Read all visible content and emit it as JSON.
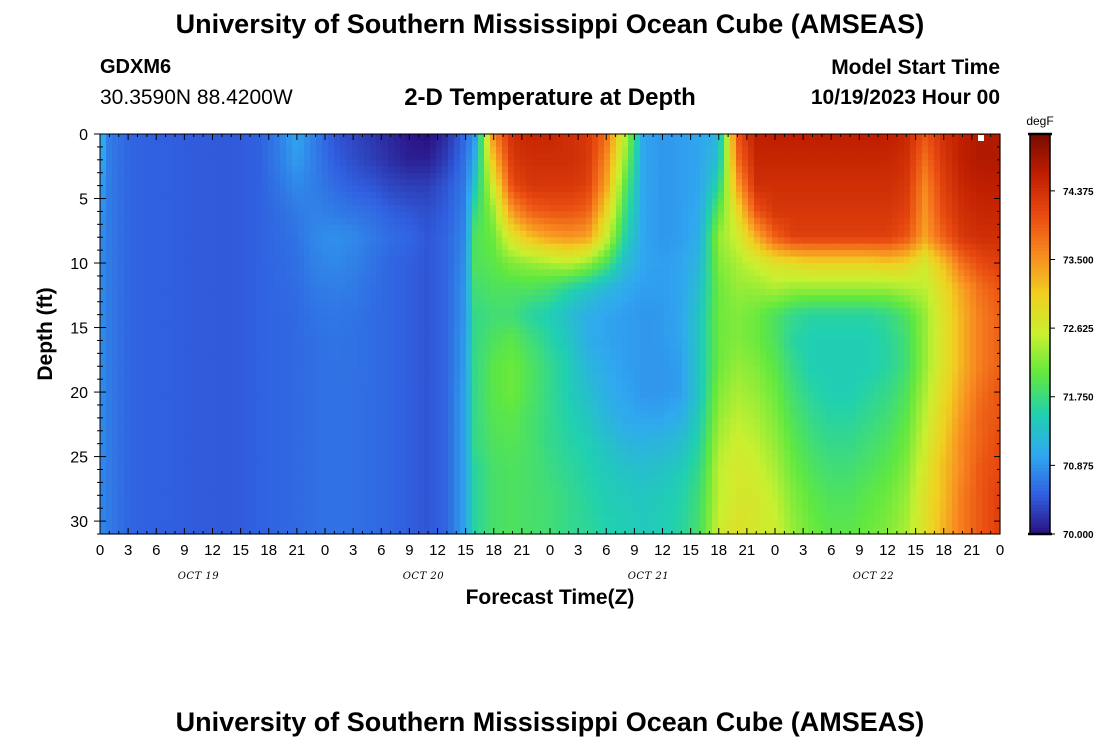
{
  "header": {
    "title": "University of Southern Mississippi Ocean Cube (AMSEAS)",
    "station": "GDXM6",
    "coords": "30.3590N  88.4200W",
    "subtitle": "2-D Temperature at Depth",
    "start_label": "Model Start Time",
    "start_date": "10/19/2023 Hour 00"
  },
  "footer": {
    "title": "University of Southern Mississippi Ocean Cube (AMSEAS)"
  },
  "chart_data": {
    "type": "heatmap",
    "title": "2-D Temperature at Depth",
    "xlabel": "Forecast Time(Z)",
    "ylabel": "Depth (ft)",
    "x_tick_labels": [
      "0",
      "3",
      "6",
      "9",
      "12",
      "15",
      "18",
      "21",
      "0",
      "3",
      "6",
      "9",
      "12",
      "15",
      "18",
      "21",
      "0",
      "3",
      "6",
      "9",
      "12",
      "15",
      "18",
      "21",
      "0",
      "3",
      "6",
      "9",
      "12",
      "15",
      "18",
      "21",
      "0"
    ],
    "x_day_labels": [
      "OCT 19",
      "OCT 20",
      "OCT 21",
      "OCT 22"
    ],
    "x_range_hours": [
      0,
      96
    ],
    "y_ticks": [
      0,
      5,
      10,
      15,
      20,
      25,
      30
    ],
    "y_range_ft": [
      0,
      31
    ],
    "colorbar": {
      "unit": "degF",
      "ticks": [
        70.0,
        70.875,
        71.75,
        72.625,
        73.5,
        74.375
      ],
      "tick_labels": [
        "70.000",
        "70.875",
        "71.750",
        "72.625",
        "73.500",
        "74.375"
      ],
      "range": [
        70.0,
        75.1
      ],
      "colormap": [
        "#2a0f80",
        "#3060e0",
        "#30a8f0",
        "#20d0b0",
        "#60e840",
        "#c8f030",
        "#f0d020",
        "#f88a20",
        "#e84a10",
        "#c01e00",
        "#780c00"
      ]
    },
    "field": {
      "depth_ft": [
        0,
        2,
        4,
        6,
        8,
        10,
        12,
        14,
        16,
        18,
        20,
        22,
        24,
        26,
        28,
        31
      ],
      "hours": [
        0,
        1,
        3,
        5,
        8,
        11,
        14,
        17,
        19,
        21,
        23,
        25,
        27,
        29,
        31,
        33,
        35,
        37,
        39,
        40,
        42,
        44,
        46,
        48,
        50,
        52,
        54,
        56,
        58,
        60,
        62,
        64,
        66,
        68,
        70,
        72,
        74,
        76,
        78,
        80,
        82,
        84,
        86,
        88,
        90,
        92,
        94,
        96
      ],
      "values_degF": [
        [
          71.2,
          70.7,
          70.55,
          70.52,
          70.5,
          70.48,
          70.47,
          70.52,
          70.72,
          71.0,
          70.7,
          70.45,
          70.35,
          70.25,
          70.15,
          70.05,
          70.0,
          70.2,
          70.6,
          70.9,
          73.6,
          74.4,
          74.5,
          74.5,
          74.4,
          74.3,
          73.8,
          72.5,
          71.0,
          70.9,
          70.95,
          71.0,
          71.2,
          74.0,
          74.6,
          74.6,
          74.6,
          74.6,
          74.6,
          74.6,
          74.6,
          74.6,
          74.5,
          74.0,
          74.4,
          74.6,
          74.7,
          74.7
        ],
        [
          71.1,
          70.7,
          70.55,
          70.52,
          70.5,
          70.48,
          70.47,
          70.52,
          70.7,
          70.95,
          70.7,
          70.5,
          70.4,
          70.3,
          70.2,
          70.1,
          70.1,
          70.3,
          70.65,
          71.1,
          73.2,
          74.3,
          74.4,
          74.4,
          74.4,
          74.3,
          73.6,
          72.3,
          71.0,
          70.9,
          70.95,
          71.0,
          71.3,
          73.8,
          74.5,
          74.5,
          74.5,
          74.5,
          74.5,
          74.5,
          74.5,
          74.5,
          74.4,
          73.8,
          74.3,
          74.6,
          74.7,
          74.7
        ],
        [
          71.0,
          70.7,
          70.55,
          70.52,
          70.5,
          70.48,
          70.47,
          70.52,
          70.65,
          70.8,
          70.72,
          70.6,
          70.5,
          70.45,
          70.35,
          70.3,
          70.3,
          70.45,
          70.7,
          71.4,
          72.7,
          74.1,
          74.3,
          74.3,
          74.3,
          74.2,
          73.4,
          72.0,
          71.0,
          70.9,
          70.95,
          71.0,
          71.6,
          73.4,
          74.4,
          74.4,
          74.4,
          74.4,
          74.4,
          74.4,
          74.4,
          74.4,
          74.3,
          73.6,
          74.2,
          74.5,
          74.6,
          74.6
        ],
        [
          70.9,
          70.7,
          70.55,
          70.52,
          70.5,
          70.48,
          70.47,
          70.52,
          70.6,
          70.7,
          70.75,
          70.7,
          70.65,
          70.6,
          70.5,
          70.45,
          70.4,
          70.5,
          70.75,
          71.7,
          72.3,
          73.5,
          73.9,
          74.0,
          74.0,
          73.9,
          73.0,
          71.8,
          71.0,
          70.9,
          70.95,
          71.05,
          72.0,
          72.9,
          74.0,
          74.3,
          74.3,
          74.3,
          74.3,
          74.3,
          74.3,
          74.3,
          74.2,
          73.5,
          74.1,
          74.4,
          74.5,
          74.5
        ],
        [
          70.85,
          70.7,
          70.55,
          70.52,
          70.5,
          70.48,
          70.47,
          70.52,
          70.58,
          70.65,
          70.8,
          70.85,
          70.8,
          70.7,
          70.6,
          70.55,
          70.45,
          70.55,
          70.8,
          71.9,
          72.1,
          72.8,
          73.2,
          73.4,
          73.5,
          73.4,
          72.6,
          71.6,
          71.0,
          70.9,
          70.95,
          71.1,
          72.3,
          72.6,
          73.3,
          73.9,
          74.2,
          74.2,
          74.2,
          74.2,
          74.2,
          74.2,
          74.0,
          73.4,
          73.9,
          74.3,
          74.4,
          74.4
        ],
        [
          70.85,
          70.7,
          70.55,
          70.52,
          70.5,
          70.48,
          70.47,
          70.52,
          70.57,
          70.62,
          70.75,
          70.8,
          70.75,
          70.65,
          70.55,
          70.5,
          70.45,
          70.55,
          70.85,
          71.9,
          72.0,
          72.2,
          72.3,
          72.4,
          72.5,
          72.3,
          71.9,
          71.3,
          71.0,
          70.95,
          71.0,
          71.2,
          72.2,
          72.4,
          72.6,
          72.8,
          72.9,
          73.0,
          73.0,
          73.0,
          73.0,
          73.1,
          73.0,
          72.7,
          73.2,
          73.8,
          74.1,
          74.2
        ],
        [
          70.85,
          70.7,
          70.55,
          70.52,
          70.5,
          70.48,
          70.47,
          70.52,
          70.56,
          70.6,
          70.7,
          70.72,
          70.7,
          70.62,
          70.55,
          70.5,
          70.45,
          70.55,
          70.9,
          71.8,
          71.9,
          71.9,
          71.9,
          71.8,
          71.6,
          71.4,
          71.2,
          71.05,
          70.95,
          70.95,
          71.0,
          71.3,
          72.1,
          72.3,
          72.3,
          72.4,
          72.3,
          72.3,
          72.3,
          72.3,
          72.3,
          72.3,
          72.4,
          72.5,
          72.9,
          73.4,
          73.8,
          74.0
        ],
        [
          70.85,
          70.7,
          70.55,
          70.52,
          70.5,
          70.48,
          70.47,
          70.52,
          70.55,
          70.58,
          70.65,
          70.68,
          70.65,
          70.6,
          70.55,
          70.5,
          70.45,
          70.55,
          70.9,
          71.7,
          71.8,
          71.8,
          71.6,
          71.5,
          71.3,
          71.1,
          71.0,
          70.95,
          70.9,
          70.92,
          71.0,
          71.4,
          72.1,
          72.2,
          72.1,
          71.9,
          71.7,
          71.6,
          71.6,
          71.6,
          71.6,
          71.7,
          71.9,
          72.3,
          72.8,
          73.3,
          73.7,
          73.9
        ],
        [
          70.85,
          70.7,
          70.55,
          70.52,
          70.5,
          70.48,
          70.47,
          70.52,
          70.55,
          70.58,
          70.62,
          70.65,
          70.63,
          70.6,
          70.55,
          70.5,
          70.45,
          70.55,
          70.95,
          71.7,
          71.9,
          72.0,
          71.8,
          71.6,
          71.4,
          71.1,
          71.0,
          70.95,
          70.9,
          70.92,
          71.0,
          71.4,
          72.1,
          72.2,
          72.1,
          71.9,
          71.6,
          71.5,
          71.5,
          71.5,
          71.5,
          71.6,
          71.8,
          72.3,
          72.8,
          73.3,
          73.7,
          73.9
        ],
        [
          70.85,
          70.7,
          70.55,
          70.52,
          70.5,
          70.48,
          70.47,
          70.52,
          70.55,
          70.58,
          70.62,
          70.64,
          70.63,
          70.6,
          70.55,
          70.5,
          70.45,
          70.55,
          70.95,
          71.7,
          72.0,
          72.1,
          71.9,
          71.7,
          71.5,
          71.2,
          71.05,
          70.95,
          70.9,
          70.9,
          70.95,
          71.4,
          72.1,
          72.3,
          72.2,
          72.0,
          71.7,
          71.5,
          71.5,
          71.5,
          71.5,
          71.6,
          71.8,
          72.3,
          72.8,
          73.3,
          73.7,
          73.9
        ],
        [
          70.85,
          70.7,
          70.55,
          70.52,
          70.5,
          70.48,
          70.47,
          70.52,
          70.55,
          70.58,
          70.62,
          70.64,
          70.62,
          70.6,
          70.55,
          70.5,
          70.45,
          70.55,
          71.0,
          71.7,
          72.0,
          72.1,
          71.9,
          71.7,
          71.5,
          71.3,
          71.1,
          71.0,
          70.9,
          70.9,
          70.95,
          71.4,
          72.2,
          72.4,
          72.3,
          72.1,
          71.8,
          71.6,
          71.5,
          71.5,
          71.6,
          71.7,
          71.9,
          72.4,
          72.9,
          73.4,
          73.8,
          74.0
        ],
        [
          70.85,
          70.7,
          70.55,
          70.52,
          70.5,
          70.48,
          70.47,
          70.52,
          70.55,
          70.58,
          70.62,
          70.64,
          70.62,
          70.6,
          70.55,
          70.5,
          70.45,
          70.55,
          71.0,
          71.7,
          71.95,
          72.0,
          71.85,
          71.7,
          71.55,
          71.4,
          71.2,
          71.05,
          71.0,
          71.0,
          71.1,
          71.5,
          72.3,
          72.5,
          72.4,
          72.2,
          71.9,
          71.7,
          71.6,
          71.6,
          71.7,
          71.8,
          72.0,
          72.5,
          73.0,
          73.5,
          73.9,
          74.0
        ],
        [
          70.85,
          70.7,
          70.55,
          70.52,
          70.5,
          70.48,
          70.47,
          70.52,
          70.55,
          70.58,
          70.62,
          70.64,
          70.62,
          70.6,
          70.55,
          70.5,
          70.45,
          70.55,
          71.0,
          71.7,
          71.9,
          71.95,
          71.85,
          71.7,
          71.6,
          71.5,
          71.35,
          71.2,
          71.15,
          71.2,
          71.3,
          71.6,
          72.4,
          72.6,
          72.5,
          72.3,
          72.0,
          71.8,
          71.7,
          71.7,
          71.8,
          71.9,
          72.1,
          72.6,
          73.1,
          73.6,
          73.9,
          74.1
        ],
        [
          70.8,
          70.7,
          70.55,
          70.52,
          70.5,
          70.48,
          70.47,
          70.52,
          70.55,
          70.58,
          70.62,
          70.64,
          70.62,
          70.6,
          70.55,
          70.5,
          70.45,
          70.55,
          71.0,
          71.6,
          71.85,
          71.9,
          71.85,
          71.75,
          71.65,
          71.55,
          71.45,
          71.35,
          71.3,
          71.35,
          71.45,
          71.7,
          72.5,
          72.7,
          72.6,
          72.4,
          72.1,
          71.9,
          71.8,
          71.8,
          71.9,
          72.0,
          72.2,
          72.7,
          73.2,
          73.6,
          74.0,
          74.1
        ],
        [
          70.8,
          70.7,
          70.55,
          70.52,
          70.5,
          70.48,
          70.47,
          70.52,
          70.55,
          70.58,
          70.62,
          70.64,
          70.62,
          70.6,
          70.55,
          70.5,
          70.45,
          70.55,
          71.0,
          71.6,
          71.85,
          71.9,
          71.85,
          71.8,
          71.7,
          71.6,
          71.5,
          71.45,
          71.4,
          71.45,
          71.55,
          71.8,
          72.5,
          72.7,
          72.7,
          72.5,
          72.2,
          72.0,
          71.9,
          71.9,
          72.0,
          72.1,
          72.3,
          72.8,
          73.2,
          73.7,
          74.0,
          74.2
        ],
        [
          70.8,
          70.7,
          70.55,
          70.52,
          70.5,
          70.48,
          70.47,
          70.52,
          70.55,
          70.58,
          70.62,
          70.64,
          70.62,
          70.6,
          70.55,
          70.5,
          70.45,
          70.55,
          71.0,
          71.6,
          71.85,
          71.9,
          71.85,
          71.8,
          71.7,
          71.65,
          71.55,
          71.5,
          71.45,
          71.5,
          71.6,
          71.85,
          72.6,
          72.8,
          72.7,
          72.6,
          72.3,
          72.1,
          72.0,
          72.0,
          72.1,
          72.2,
          72.4,
          72.8,
          73.3,
          73.7,
          74.0,
          74.2
        ]
      ]
    }
  }
}
